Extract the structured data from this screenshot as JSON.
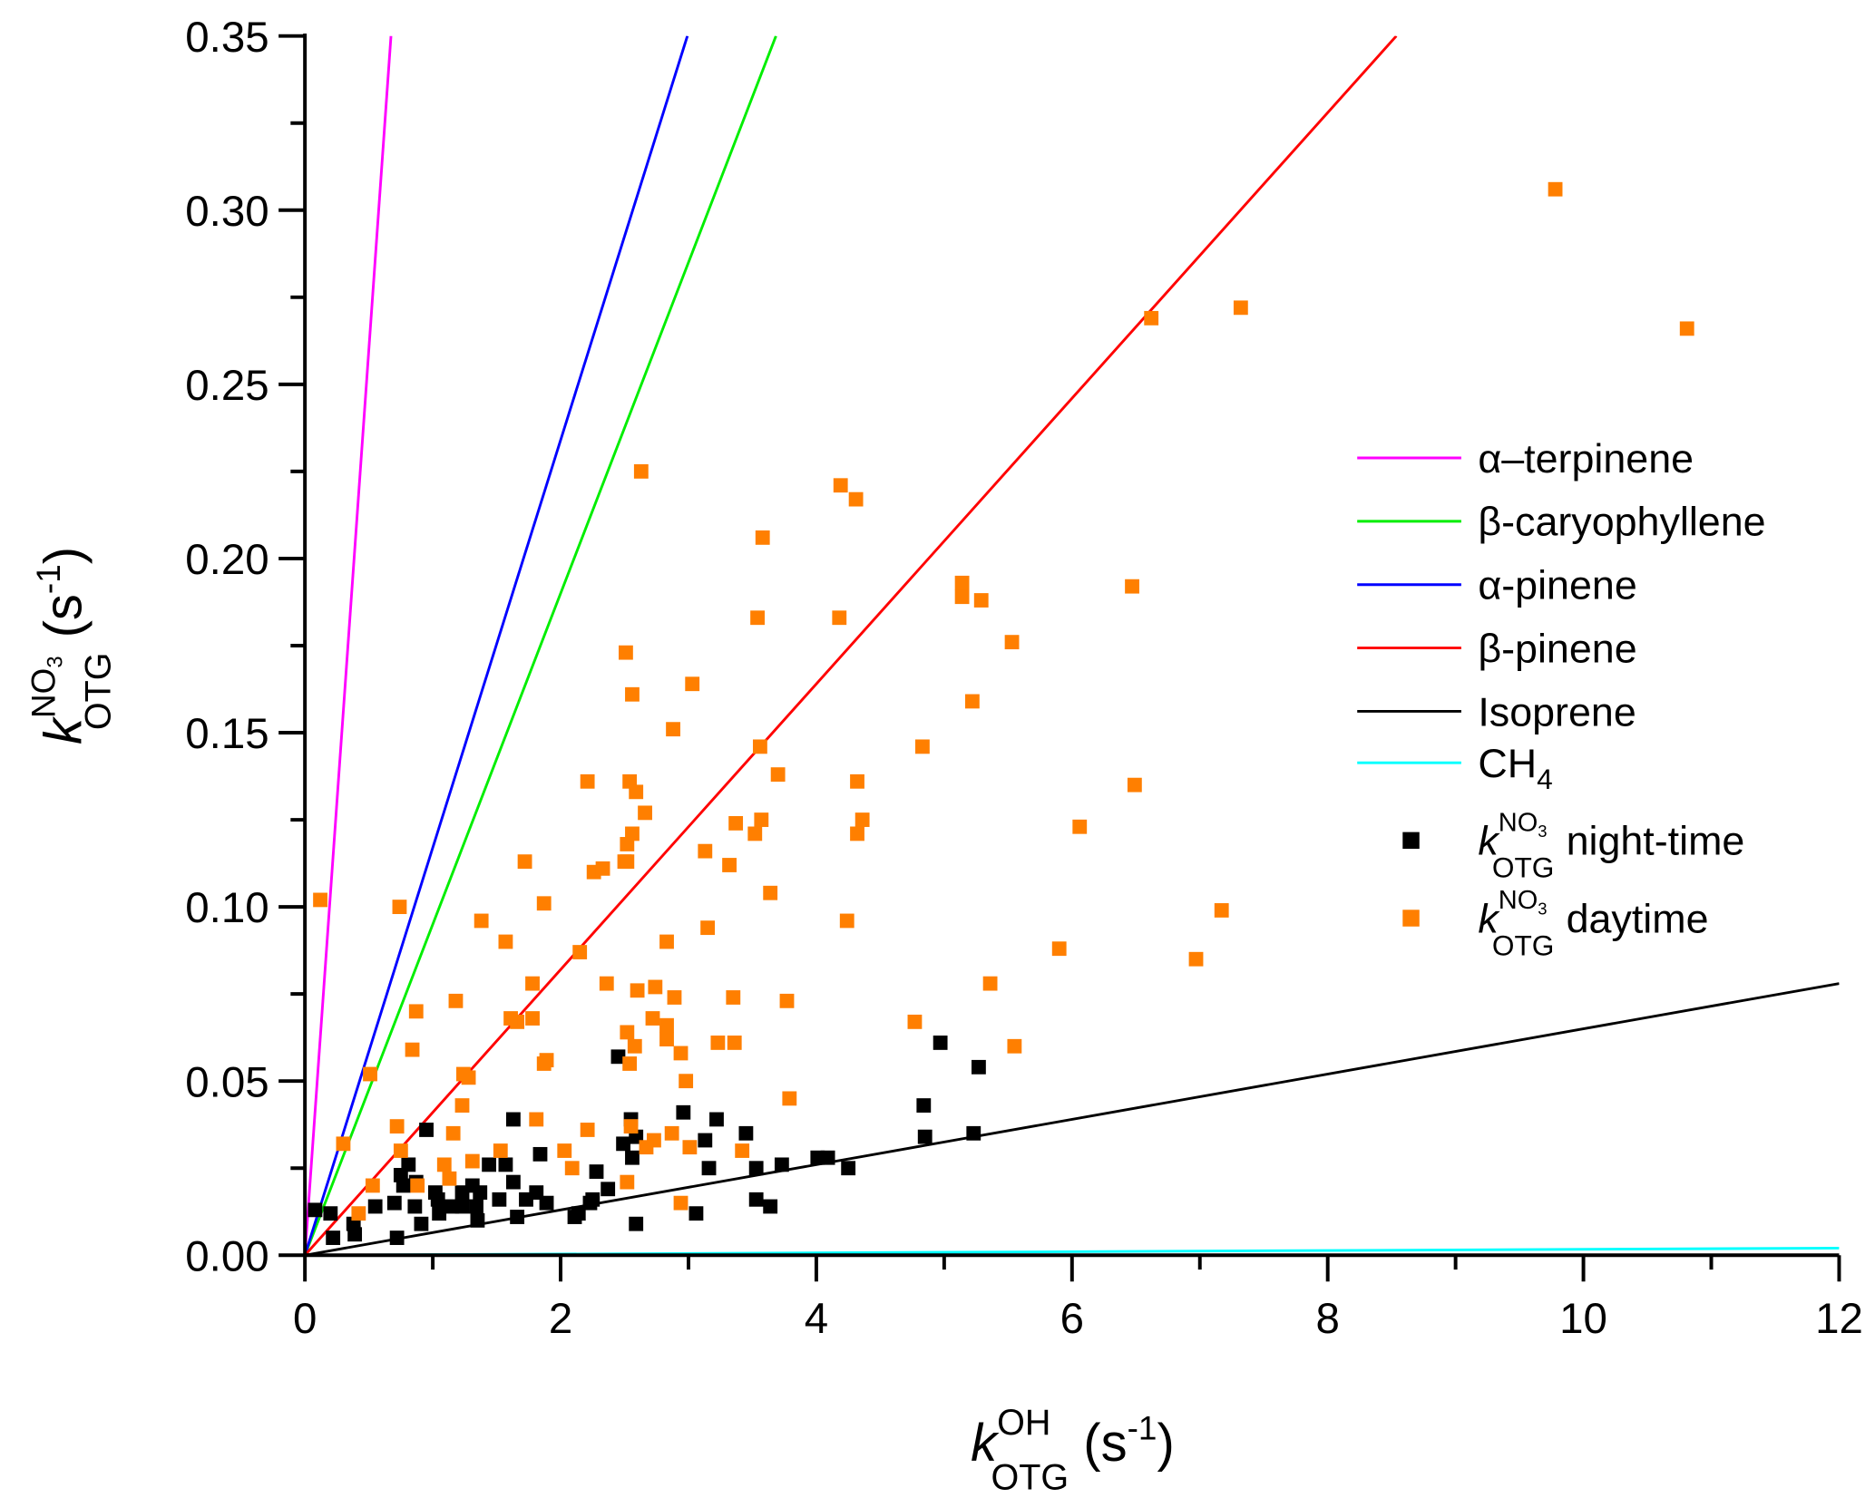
{
  "chart_data": {
    "type": "scatter",
    "title": "",
    "xlabel": {
      "k": "k",
      "sup": "OH",
      "sub": "OTG",
      "unit": " (s",
      "unit_sup": "-1",
      "close": ")"
    },
    "ylabel": {
      "k": "k",
      "sup": "NO",
      "sup_sub": "3",
      "sub": "OTG",
      "unit": " (s",
      "unit_sup": "-1",
      "close": ")"
    },
    "xlim": [
      0,
      12
    ],
    "ylim": [
      0,
      0.35
    ],
    "xticks": [
      "0",
      "2",
      "4",
      "6",
      "8",
      "10",
      "12"
    ],
    "xtick_values": [
      0,
      2,
      4,
      6,
      8,
      10,
      12
    ],
    "yticks": [
      "0.00",
      "0.05",
      "0.10",
      "0.15",
      "0.20",
      "0.25",
      "0.30",
      "0.35"
    ],
    "ytick_values": [
      0,
      0.05,
      0.1,
      0.15,
      0.2,
      0.25,
      0.3,
      0.35
    ],
    "grid": false,
    "legend_position": "right",
    "lines": [
      {
        "name": "α–terpinene",
        "slope": 0.52,
        "color": "#ff00ff"
      },
      {
        "name": "β-caryophyllene",
        "slope": 0.095,
        "color": "#00ee00"
      },
      {
        "name": "α-pinene",
        "slope": 0.117,
        "color": "#0000ff"
      },
      {
        "name": "β-pinene",
        "slope": 0.041,
        "color": "#ff0000"
      },
      {
        "name": "Isoprene",
        "slope": 0.0065,
        "color": "#000000"
      },
      {
        "name": "CH",
        "name_sub": "4",
        "slope": 0.00017,
        "color": "#00ffff"
      }
    ],
    "series": [
      {
        "name": "night-time",
        "label_k": "k",
        "label_sup": "NO",
        "label_sup_sub": "3",
        "label_sub": "OTG",
        "color": "#000000",
        "points": [
          [
            4.97,
            0.061
          ],
          [
            5.27,
            0.054
          ],
          [
            2.45,
            0.057
          ],
          [
            4.84,
            0.043
          ],
          [
            2.96,
            0.041
          ],
          [
            1.63,
            0.039
          ],
          [
            3.22,
            0.039
          ],
          [
            2.55,
            0.039
          ],
          [
            0.95,
            0.036
          ],
          [
            3.45,
            0.035
          ],
          [
            2.59,
            0.034
          ],
          [
            4.85,
            0.034
          ],
          [
            5.23,
            0.035
          ],
          [
            3.13,
            0.033
          ],
          [
            2.49,
            0.032
          ],
          [
            3.73,
            0.026
          ],
          [
            4.01,
            0.028
          ],
          [
            4.09,
            0.028
          ],
          [
            4.25,
            0.025
          ],
          [
            3.53,
            0.025
          ],
          [
            3.16,
            0.025
          ],
          [
            2.56,
            0.028
          ],
          [
            2.28,
            0.024
          ],
          [
            1.84,
            0.029
          ],
          [
            1.44,
            0.026
          ],
          [
            1.57,
            0.026
          ],
          [
            0.81,
            0.026
          ],
          [
            2.37,
            0.019
          ],
          [
            1.63,
            0.021
          ],
          [
            1.81,
            0.018
          ],
          [
            0.75,
            0.023
          ],
          [
            0.77,
            0.02
          ],
          [
            0.87,
            0.021
          ],
          [
            1.02,
            0.018
          ],
          [
            1.23,
            0.018
          ],
          [
            1.31,
            0.02
          ],
          [
            1.37,
            0.018
          ],
          [
            1.04,
            0.016
          ],
          [
            1.52,
            0.016
          ],
          [
            1.73,
            0.016
          ],
          [
            2.25,
            0.016
          ],
          [
            2.23,
            0.015
          ],
          [
            1.23,
            0.014
          ],
          [
            1.15,
            0.014
          ],
          [
            1.05,
            0.012
          ],
          [
            1.34,
            0.014
          ],
          [
            1.35,
            0.01
          ],
          [
            1.89,
            0.015
          ],
          [
            0.86,
            0.014
          ],
          [
            0.7,
            0.015
          ],
          [
            0.55,
            0.014
          ],
          [
            3.53,
            0.016
          ],
          [
            3.64,
            0.014
          ],
          [
            3.06,
            0.012
          ],
          [
            2.14,
            0.012
          ],
          [
            2.11,
            0.011
          ],
          [
            1.66,
            0.011
          ],
          [
            0.91,
            0.009
          ],
          [
            2.59,
            0.009
          ],
          [
            0.08,
            0.013
          ],
          [
            0.2,
            0.012
          ],
          [
            0.38,
            0.009
          ],
          [
            0.39,
            0.006
          ],
          [
            0.22,
            0.005
          ],
          [
            0.72,
            0.005
          ]
        ]
      },
      {
        "name": "daytime",
        "label_k": "k",
        "label_sup": "NO",
        "label_sup_sub": "3",
        "label_sub": "OTG",
        "color": "#ff7f00",
        "points": [
          [
            9.78,
            0.306
          ],
          [
            7.32,
            0.272
          ],
          [
            6.62,
            0.269
          ],
          [
            10.81,
            0.266
          ],
          [
            2.63,
            0.225
          ],
          [
            4.19,
            0.221
          ],
          [
            4.31,
            0.217
          ],
          [
            3.58,
            0.206
          ],
          [
            5.14,
            0.193
          ],
          [
            6.47,
            0.192
          ],
          [
            5.14,
            0.189
          ],
          [
            5.29,
            0.188
          ],
          [
            3.54,
            0.183
          ],
          [
            4.18,
            0.183
          ],
          [
            5.53,
            0.176
          ],
          [
            2.51,
            0.173
          ],
          [
            3.03,
            0.164
          ],
          [
            2.56,
            0.161
          ],
          [
            5.22,
            0.159
          ],
          [
            2.88,
            0.151
          ],
          [
            4.83,
            0.146
          ],
          [
            3.56,
            0.146
          ],
          [
            3.7,
            0.138
          ],
          [
            2.21,
            0.136
          ],
          [
            2.54,
            0.136
          ],
          [
            4.32,
            0.136
          ],
          [
            6.49,
            0.135
          ],
          [
            2.59,
            0.133
          ],
          [
            2.66,
            0.127
          ],
          [
            3.57,
            0.125
          ],
          [
            4.36,
            0.125
          ],
          [
            3.37,
            0.124
          ],
          [
            6.06,
            0.123
          ],
          [
            2.56,
            0.121
          ],
          [
            3.52,
            0.121
          ],
          [
            4.32,
            0.121
          ],
          [
            3.13,
            0.116
          ],
          [
            2.52,
            0.118
          ],
          [
            1.72,
            0.113
          ],
          [
            2.5,
            0.113
          ],
          [
            2.52,
            0.113
          ],
          [
            3.32,
            0.112
          ],
          [
            2.26,
            0.11
          ],
          [
            2.33,
            0.111
          ],
          [
            3.64,
            0.104
          ],
          [
            0.12,
            0.102
          ],
          [
            0.74,
            0.1
          ],
          [
            1.87,
            0.101
          ],
          [
            7.17,
            0.099
          ],
          [
            4.24,
            0.096
          ],
          [
            1.38,
            0.096
          ],
          [
            3.15,
            0.094
          ],
          [
            1.57,
            0.09
          ],
          [
            2.83,
            0.09
          ],
          [
            5.9,
            0.088
          ],
          [
            2.15,
            0.087
          ],
          [
            6.97,
            0.085
          ],
          [
            2.36,
            0.078
          ],
          [
            1.78,
            0.078
          ],
          [
            5.36,
            0.078
          ],
          [
            2.6,
            0.076
          ],
          [
            2.74,
            0.077
          ],
          [
            2.89,
            0.074
          ],
          [
            1.18,
            0.073
          ],
          [
            3.35,
            0.074
          ],
          [
            3.77,
            0.073
          ],
          [
            0.87,
            0.07
          ],
          [
            2.72,
            0.068
          ],
          [
            4.77,
            0.067
          ],
          [
            1.66,
            0.067
          ],
          [
            1.61,
            0.068
          ],
          [
            1.78,
            0.068
          ],
          [
            2.52,
            0.064
          ],
          [
            2.83,
            0.066
          ],
          [
            2.83,
            0.062
          ],
          [
            3.23,
            0.061
          ],
          [
            3.36,
            0.061
          ],
          [
            2.58,
            0.06
          ],
          [
            5.55,
            0.06
          ],
          [
            0.84,
            0.059
          ],
          [
            2.94,
            0.058
          ],
          [
            1.89,
            0.056
          ],
          [
            1.87,
            0.055
          ],
          [
            2.54,
            0.055
          ],
          [
            0.51,
            0.052
          ],
          [
            1.24,
            0.052
          ],
          [
            1.28,
            0.051
          ],
          [
            2.98,
            0.05
          ],
          [
            3.79,
            0.045
          ],
          [
            1.23,
            0.043
          ],
          [
            2.21,
            0.036
          ],
          [
            1.81,
            0.039
          ],
          [
            0.72,
            0.037
          ],
          [
            1.16,
            0.035
          ],
          [
            2.87,
            0.035
          ],
          [
            2.55,
            0.037
          ],
          [
            2.73,
            0.033
          ],
          [
            2.67,
            0.031
          ],
          [
            0.3,
            0.032
          ],
          [
            2.03,
            0.03
          ],
          [
            3.01,
            0.031
          ],
          [
            0.75,
            0.03
          ],
          [
            2.09,
            0.025
          ],
          [
            1.31,
            0.027
          ],
          [
            1.53,
            0.03
          ],
          [
            3.42,
            0.03
          ],
          [
            1.09,
            0.026
          ],
          [
            1.13,
            0.022
          ],
          [
            0.53,
            0.02
          ],
          [
            0.88,
            0.02
          ],
          [
            2.52,
            0.021
          ],
          [
            2.94,
            0.015
          ],
          [
            0.42,
            0.012
          ]
        ]
      }
    ]
  }
}
